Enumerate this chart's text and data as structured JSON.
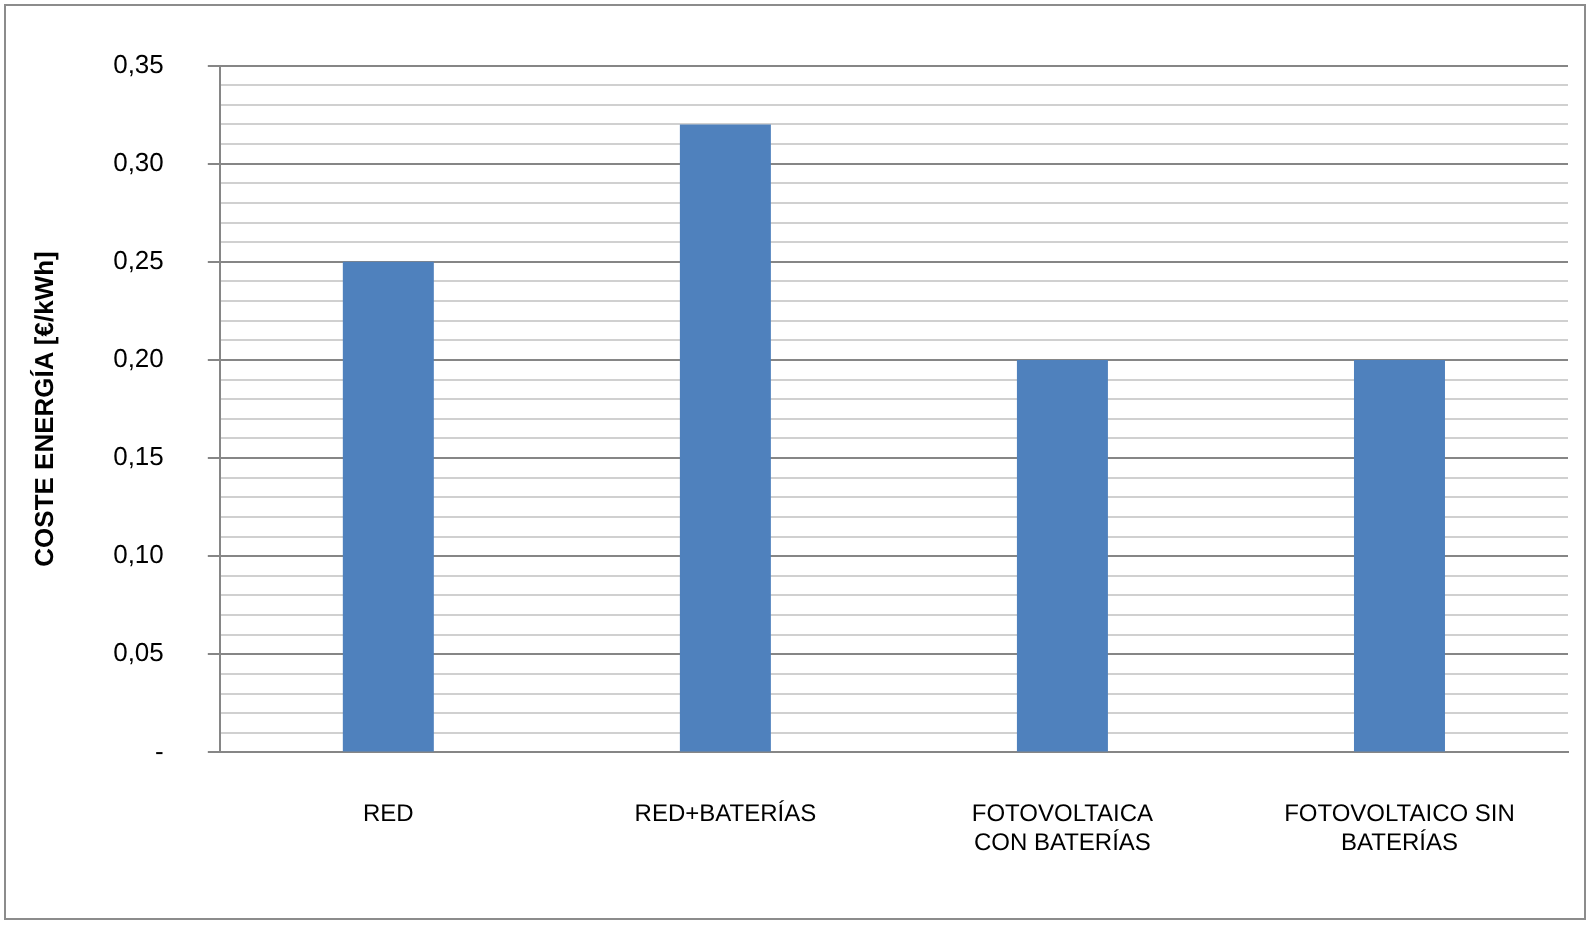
{
  "chart_data": {
    "type": "bar",
    "ylabel": "COSTE ENERGÍA [€/kWh]",
    "categories": [
      "RED",
      "RED+BATERÍAS",
      "FOTOVOLTAICA\nCON BATERÍAS",
      "FOTOVOLTAICO SIN\nBATERÍAS"
    ],
    "values": [
      0.25,
      0.32,
      0.2,
      0.2
    ],
    "color": "#4f81bd",
    "ylim": [
      0,
      0.35
    ],
    "yticks": [
      {
        "value": 0,
        "label": "-"
      },
      {
        "value": 0.01,
        "label": null
      },
      {
        "value": 0.02,
        "label": null
      },
      {
        "value": 0.03,
        "label": null
      },
      {
        "value": 0.04,
        "label": null
      },
      {
        "value": 0.05,
        "label": "0,05"
      },
      {
        "value": 0.06,
        "label": null
      },
      {
        "value": 0.07,
        "label": null
      },
      {
        "value": 0.08,
        "label": null
      },
      {
        "value": 0.09,
        "label": null
      },
      {
        "value": 0.1,
        "label": "0,10"
      },
      {
        "value": 0.11,
        "label": null
      },
      {
        "value": 0.12,
        "label": null
      },
      {
        "value": 0.13,
        "label": null
      },
      {
        "value": 0.14,
        "label": null
      },
      {
        "value": 0.15,
        "label": "0,15"
      },
      {
        "value": 0.16,
        "label": null
      },
      {
        "value": 0.17,
        "label": null
      },
      {
        "value": 0.18,
        "label": null
      },
      {
        "value": 0.19,
        "label": null
      },
      {
        "value": 0.2,
        "label": "0,20"
      },
      {
        "value": 0.21,
        "label": null
      },
      {
        "value": 0.22,
        "label": null
      },
      {
        "value": 0.23,
        "label": null
      },
      {
        "value": 0.24,
        "label": null
      },
      {
        "value": 0.25,
        "label": "0,25"
      },
      {
        "value": 0.26,
        "label": null
      },
      {
        "value": 0.27,
        "label": null
      },
      {
        "value": 0.28,
        "label": null
      },
      {
        "value": 0.29,
        "label": null
      },
      {
        "value": 0.3,
        "label": "0,30"
      },
      {
        "value": 0.31,
        "label": null
      },
      {
        "value": 0.32,
        "label": null
      },
      {
        "value": 0.33,
        "label": null
      },
      {
        "value": 0.34,
        "label": null
      },
      {
        "value": 0.35,
        "label": "0,35"
      }
    ],
    "grid": "y"
  }
}
